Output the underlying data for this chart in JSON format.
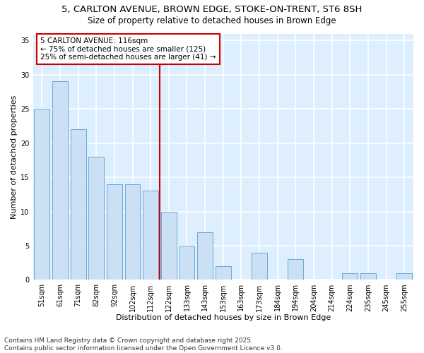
{
  "title_line1": "5, CARLTON AVENUE, BROWN EDGE, STOKE-ON-TRENT, ST6 8SH",
  "title_line2": "Size of property relative to detached houses in Brown Edge",
  "xlabel": "Distribution of detached houses by size in Brown Edge",
  "ylabel": "Number of detached properties",
  "categories": [
    "51sqm",
    "61sqm",
    "71sqm",
    "82sqm",
    "92sqm",
    "102sqm",
    "112sqm",
    "122sqm",
    "133sqm",
    "143sqm",
    "153sqm",
    "163sqm",
    "173sqm",
    "184sqm",
    "194sqm",
    "204sqm",
    "214sqm",
    "224sqm",
    "235sqm",
    "245sqm",
    "255sqm"
  ],
  "values": [
    25,
    29,
    22,
    18,
    14,
    14,
    13,
    10,
    5,
    7,
    2,
    0,
    4,
    0,
    3,
    0,
    0,
    1,
    1,
    0,
    1
  ],
  "bar_color": "#cce0f5",
  "bar_edge_color": "#6aaad4",
  "background_color": "#ddeeff",
  "grid_color": "#ffffff",
  "vline_x": 6.5,
  "vline_color": "#cc0000",
  "annotation_text": "5 CARLTON AVENUE: 116sqm\n← 75% of detached houses are smaller (125)\n25% of semi-detached houses are larger (41) →",
  "annotation_box_color": "#ffffff",
  "annotation_box_edge_color": "#cc0000",
  "ylim": [
    0,
    36
  ],
  "yticks": [
    0,
    5,
    10,
    15,
    20,
    25,
    30,
    35
  ],
  "footer_text": "Contains HM Land Registry data © Crown copyright and database right 2025.\nContains public sector information licensed under the Open Government Licence v3.0.",
  "title_fontsize": 9.5,
  "subtitle_fontsize": 8.5,
  "axis_label_fontsize": 8,
  "tick_fontsize": 7,
  "annotation_fontsize": 7.5,
  "footer_fontsize": 6.5
}
